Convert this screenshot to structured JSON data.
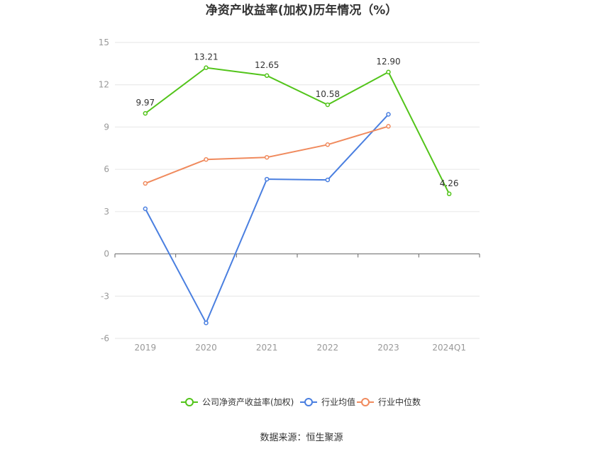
{
  "chart_data": {
    "type": "line",
    "title": "净资产收益率(加权)历年情况（%）",
    "categories": [
      "2019",
      "2020",
      "2021",
      "2022",
      "2023",
      "2024Q1"
    ],
    "ylim": [
      -6,
      15
    ],
    "yticks": [
      "15",
      "12",
      "9",
      "6",
      "3",
      "0",
      "-3",
      "-6"
    ],
    "grid": true,
    "legend_position": "bottom",
    "series": [
      {
        "name": "公司净资产收益率(加权)",
        "color": "#52c41a",
        "values": [
          9.97,
          13.21,
          12.65,
          10.58,
          12.9,
          4.26
        ],
        "labels": [
          "9.97",
          "13.21",
          "12.65",
          "10.58",
          "12.90",
          "4.26"
        ]
      },
      {
        "name": "行业均值",
        "color": "#4a7fe0",
        "values": [
          3.2,
          -4.9,
          5.3,
          5.25,
          9.9,
          null
        ]
      },
      {
        "name": "行业中位数",
        "color": "#f08a5d",
        "values": [
          5.0,
          6.7,
          6.85,
          7.75,
          9.05,
          null
        ]
      }
    ]
  },
  "footer": {
    "source": "数据来源：恒生聚源"
  }
}
